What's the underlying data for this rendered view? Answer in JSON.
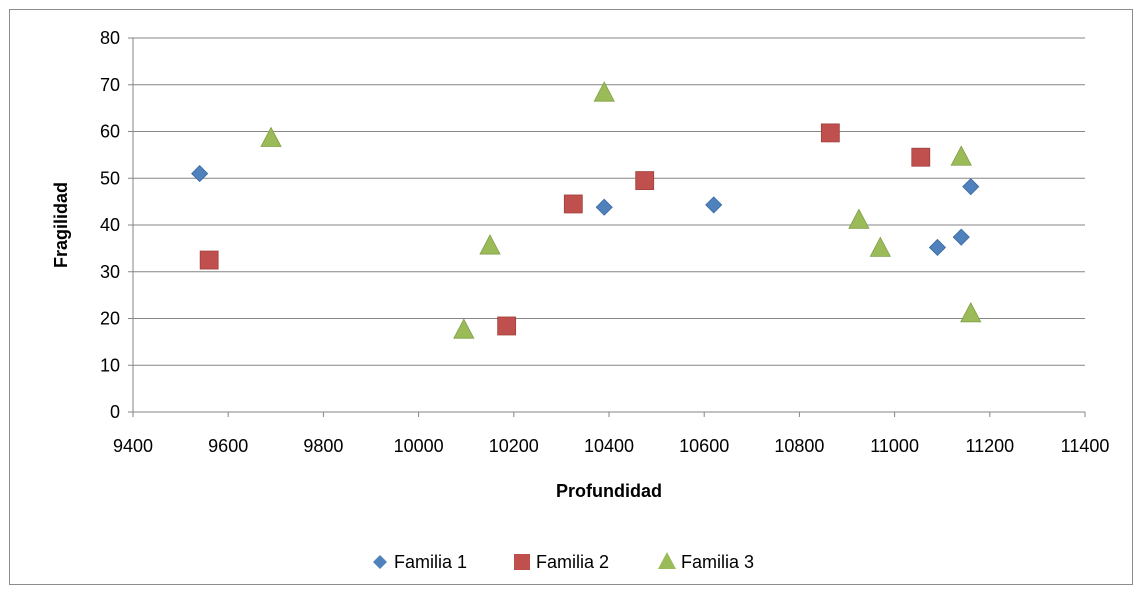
{
  "chart_data": {
    "type": "scatter",
    "title": "",
    "xlabel": "Profundidad",
    "ylabel": "Fragilidad",
    "xlim": [
      9400,
      11400
    ],
    "ylim": [
      0,
      80
    ],
    "xticks": [
      9400,
      9600,
      9800,
      10000,
      10200,
      10400,
      10600,
      10800,
      11000,
      11200,
      11400
    ],
    "yticks": [
      0,
      10,
      20,
      30,
      40,
      50,
      60,
      70,
      80
    ],
    "grid": "horizontal",
    "legend_position": "bottom",
    "series": [
      {
        "name": "Familia 1",
        "marker": "diamond",
        "color": "#4f81bd",
        "points": [
          {
            "x": 9540,
            "y": 51
          },
          {
            "x": 10390,
            "y": 43.8
          },
          {
            "x": 10620,
            "y": 44.3
          },
          {
            "x": 11090,
            "y": 35.2
          },
          {
            "x": 11140,
            "y": 37.4
          },
          {
            "x": 11160,
            "y": 48.2
          }
        ]
      },
      {
        "name": "Familia 2",
        "marker": "square",
        "color": "#c0504d",
        "points": [
          {
            "x": 9560,
            "y": 32.5
          },
          {
            "x": 10185,
            "y": 18.4
          },
          {
            "x": 10325,
            "y": 44.5
          },
          {
            "x": 10475,
            "y": 49.5
          },
          {
            "x": 10865,
            "y": 59.7
          },
          {
            "x": 11055,
            "y": 54.5
          }
        ]
      },
      {
        "name": "Familia 3",
        "marker": "triangle",
        "color": "#9bbb59",
        "points": [
          {
            "x": 9690,
            "y": 58.5
          },
          {
            "x": 10095,
            "y": 17.5
          },
          {
            "x": 10150,
            "y": 35.5
          },
          {
            "x": 10390,
            "y": 68.2
          },
          {
            "x": 10925,
            "y": 41
          },
          {
            "x": 10970,
            "y": 35
          },
          {
            "x": 11140,
            "y": 54.5
          },
          {
            "x": 11160,
            "y": 21
          }
        ]
      }
    ]
  }
}
